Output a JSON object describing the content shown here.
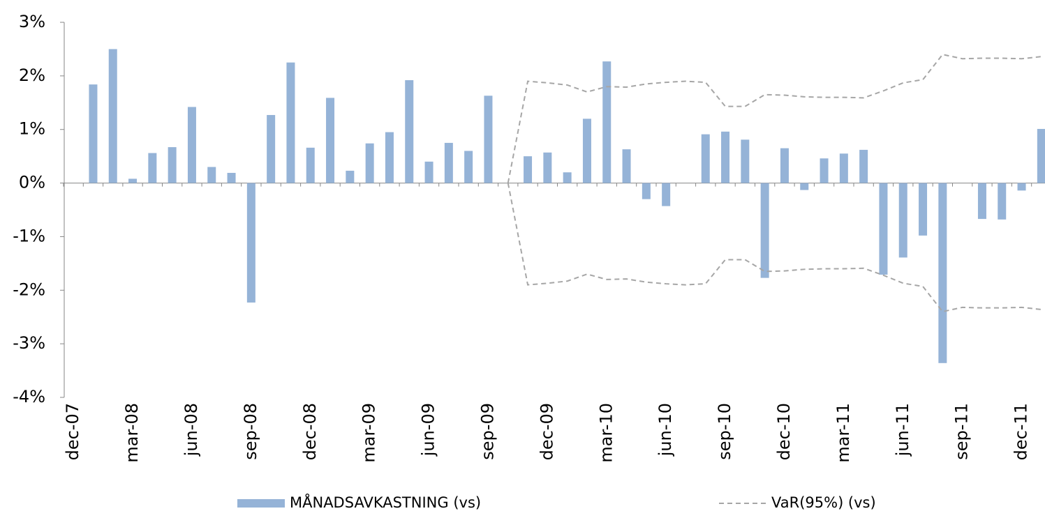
{
  "chart_data": {
    "type": "bar",
    "categories": [
      "dec-07",
      null,
      null,
      "mar-08",
      null,
      null,
      "jun-08",
      null,
      null,
      "sep-08",
      null,
      null,
      "dec-08",
      null,
      null,
      "mar-09",
      null,
      null,
      "jun-09",
      null,
      null,
      "sep-09",
      null,
      null,
      "dec-09",
      null,
      null,
      "mar-10",
      null,
      null,
      "jun-10",
      null,
      null,
      "sep-10",
      null,
      null,
      "dec-10",
      null,
      null,
      "mar-11",
      null,
      null,
      "jun-11",
      null,
      null,
      "sep-11",
      null,
      null,
      "dec-11",
      null
    ],
    "series": [
      {
        "name": "MÅNADSAVKASTNING (vs)",
        "color": "#95b3d7",
        "values": [
          0,
          1.84,
          2.5,
          0.08,
          0.56,
          0.67,
          1.42,
          0.3,
          0.19,
          -2.23,
          1.27,
          2.25,
          0.66,
          1.59,
          0.23,
          0.74,
          0.95,
          1.92,
          0.4,
          0.75,
          0.6,
          1.63,
          0,
          0.5,
          0.57,
          0.2,
          1.2,
          2.27,
          0.63,
          -0.3,
          -0.43,
          0,
          0.91,
          0.96,
          0.81,
          -1.77,
          0.65,
          -0.13,
          0.46,
          0.55,
          0.62,
          -1.71,
          -1.39,
          -0.98,
          -3.36,
          0,
          -0.67,
          -0.68,
          -0.14,
          1.01
        ]
      },
      {
        "name": "VaR(95%) (vs)",
        "color": "#a6a6a6",
        "dashed": true,
        "upper": [
          null,
          null,
          null,
          null,
          null,
          null,
          null,
          null,
          null,
          null,
          null,
          null,
          null,
          null,
          null,
          null,
          null,
          null,
          null,
          null,
          null,
          null,
          0,
          1.9,
          1.87,
          1.83,
          1.7,
          1.8,
          1.79,
          1.85,
          1.88,
          1.9,
          1.88,
          1.43,
          1.43,
          1.65,
          1.64,
          1.61,
          1.6,
          1.6,
          1.59,
          1.72,
          1.87,
          1.93,
          2.4,
          2.32,
          2.33,
          2.33,
          2.32,
          2.36
        ],
        "lower": [
          null,
          null,
          null,
          null,
          null,
          null,
          null,
          null,
          null,
          null,
          null,
          null,
          null,
          null,
          null,
          null,
          null,
          null,
          null,
          null,
          null,
          null,
          0,
          -1.9,
          -1.87,
          -1.83,
          -1.7,
          -1.8,
          -1.79,
          -1.85,
          -1.88,
          -1.9,
          -1.88,
          -1.43,
          -1.43,
          -1.65,
          -1.64,
          -1.61,
          -1.6,
          -1.6,
          -1.59,
          -1.72,
          -1.87,
          -1.93,
          -2.4,
          -2.32,
          -2.33,
          -2.33,
          -2.32,
          -2.36
        ]
      }
    ],
    "ylim": [
      -4,
      3
    ],
    "yticks": [
      {
        "value": -4,
        "label": "-4%"
      },
      {
        "value": -3,
        "label": "-3%"
      },
      {
        "value": -2,
        "label": "-2%"
      },
      {
        "value": -1,
        "label": "-1%"
      },
      {
        "value": 0,
        "label": "0%"
      },
      {
        "value": 1,
        "label": "1%"
      },
      {
        "value": 2,
        "label": "2%"
      },
      {
        "value": 3,
        "label": "3%"
      }
    ],
    "grid": false
  }
}
